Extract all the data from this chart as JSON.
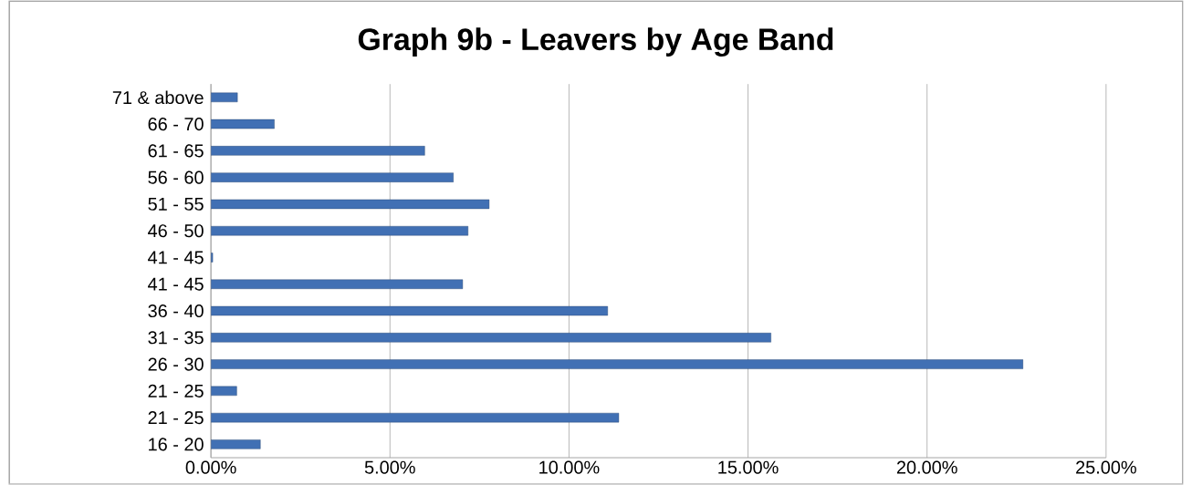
{
  "chart_data": {
    "type": "bar",
    "orientation": "horizontal",
    "title": "Graph 9b - Leavers by Age Band",
    "categories": [
      "71 & above",
      "66 - 70",
      "61 - 65",
      "56 - 60",
      "51 - 55",
      "46 - 50",
      "41 - 45",
      "41 - 45",
      "36 - 40",
      "31 - 35",
      "26 - 30",
      "21 - 25",
      "21 - 25",
      "16 - 20"
    ],
    "values": [
      0.74,
      1.77,
      5.97,
      6.77,
      7.77,
      7.18,
      0.05,
      7.03,
      11.08,
      15.64,
      22.68,
      0.72,
      11.39,
      1.38
    ],
    "color": "#4170b4",
    "xlim": [
      0,
      25
    ],
    "xticks": [
      {
        "value": 0,
        "label": "0.00%"
      },
      {
        "value": 5,
        "label": "5.00%"
      },
      {
        "value": 10,
        "label": "10.00%"
      },
      {
        "value": 15,
        "label": "15.00%"
      },
      {
        "value": 20,
        "label": "20.00%"
      },
      {
        "value": 25,
        "label": "25.00%"
      }
    ],
    "grid": "x"
  }
}
